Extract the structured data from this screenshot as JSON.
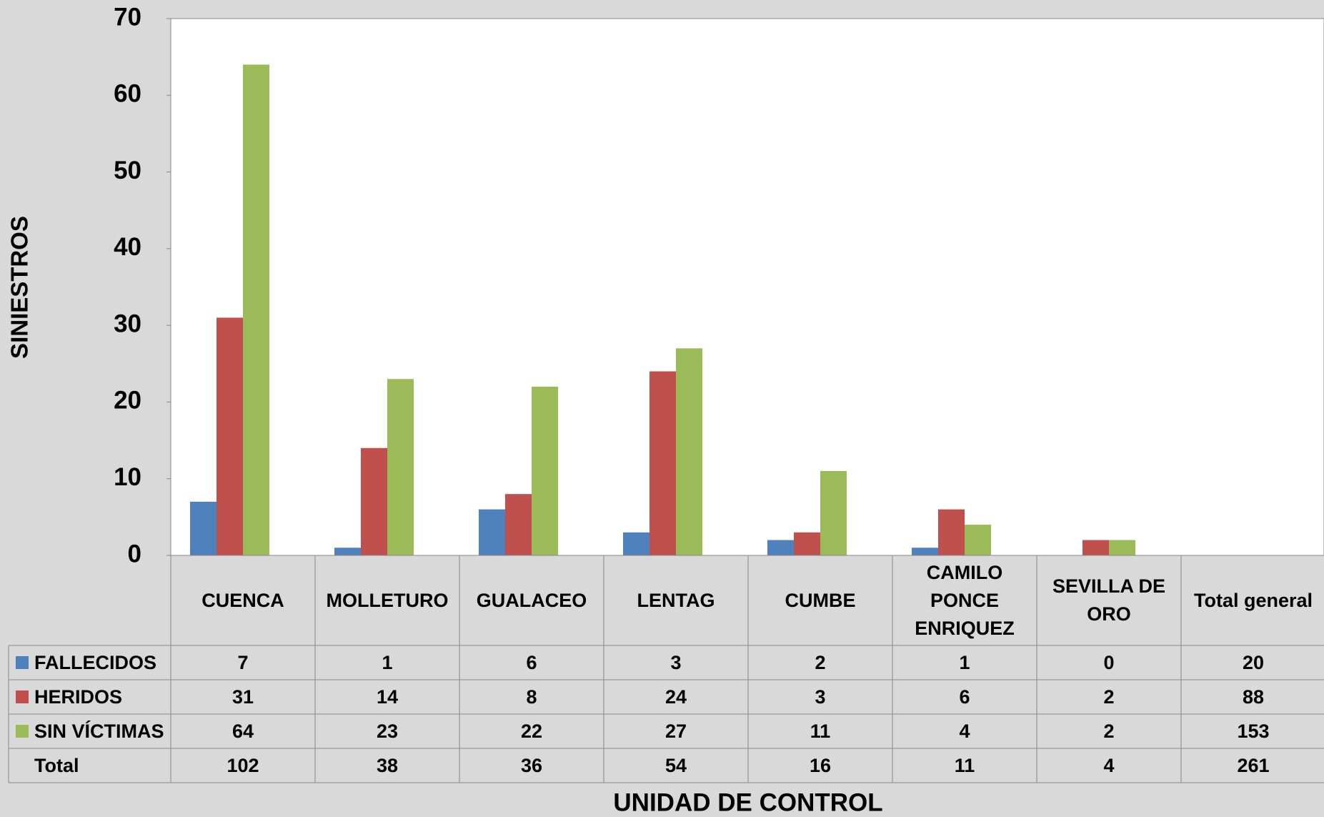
{
  "chart_data": {
    "type": "bar",
    "y_label": "SINIESTROS",
    "x_label": "UNIDAD DE CONTROL",
    "categories": [
      "CUENCA",
      "MOLLETURO",
      "GUALACEO",
      "LENTAG",
      "CUMBE",
      "CAMILO PONCE ENRIQUEZ",
      "SEVILLA DE ORO"
    ],
    "total_column_label": "Total general",
    "series": [
      {
        "name": "FALLECIDOS",
        "color": "#4f81bd",
        "values": [
          7,
          1,
          6,
          3,
          2,
          1,
          0
        ],
        "total": 20
      },
      {
        "name": "HERIDOS",
        "color": "#c0504d",
        "values": [
          31,
          14,
          8,
          24,
          3,
          6,
          2
        ],
        "total": 88
      },
      {
        "name": "SIN VÍCTIMAS",
        "color": "#9bbb59",
        "values": [
          64,
          23,
          22,
          27,
          11,
          4,
          2
        ],
        "total": 153
      }
    ],
    "total_row": {
      "label": "Total",
      "values": [
        102,
        38,
        36,
        54,
        16,
        11,
        4,
        261
      ]
    },
    "ylim": [
      0,
      70
    ],
    "yticks": [
      0,
      10,
      20,
      30,
      40,
      50,
      60,
      70
    ],
    "grid": false
  }
}
